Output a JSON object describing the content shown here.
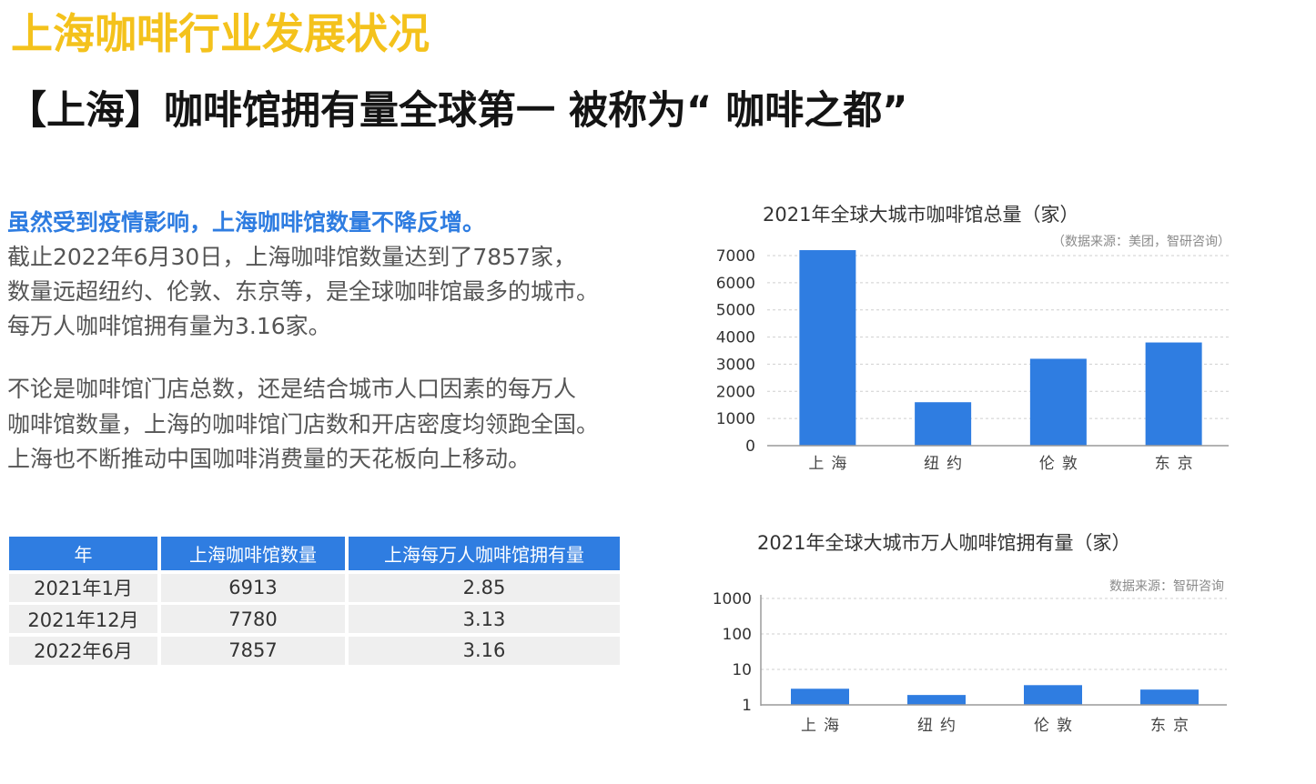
{
  "header": {
    "title": "上海咖啡行业发展状况",
    "subtitle": "【上海】咖啡馆拥有量全球第一 被称为“ 咖啡之都”"
  },
  "intro": {
    "highlight": "虽然受到疫情影响，上海咖啡馆数量不降反增。",
    "lines": [
      "截止2022年6月30日，上海咖啡馆数量达到了7857家，",
      "数量远超纽约、伦敦、东京等，是全球咖啡馆最多的城市。",
      "每万人咖啡馆拥有量为3.16家。"
    ]
  },
  "detail": {
    "lines": [
      "不论是咖啡馆门店总数，还是结合城市人口因素的每万人",
      "咖啡馆数量，上海的咖啡馆门店数和开店密度均领跑全国。",
      "上海也不断推动中国咖啡消费量的天花板向上移动。"
    ]
  },
  "table": {
    "headers": [
      "年",
      "上海咖啡馆数量",
      "上海每万人咖啡馆拥有量"
    ],
    "rows": [
      [
        "2021年1月",
        "6913",
        "2.85"
      ],
      [
        "2021年12月",
        "7780",
        "3.13"
      ],
      [
        "2022年6月",
        "7857",
        "3.16"
      ]
    ]
  },
  "colors": {
    "title": "#F4C21C",
    "highlight": "#2F7DE1",
    "table_header": "#2F7DE1",
    "bar": "#2F7DE1"
  },
  "chart_data": [
    {
      "type": "bar",
      "title": "2021年全球大城市咖啡馆总量（家）",
      "source": "（数据来源：美团，智研咨询）",
      "categories": [
        "上海",
        "纽约",
        "伦敦",
        "东京"
      ],
      "values": [
        7200,
        1600,
        3200,
        3800
      ],
      "yscale": "linear",
      "ylim": [
        0,
        7000
      ],
      "yticks": [
        0,
        1000,
        2000,
        3000,
        4000,
        5000,
        6000,
        7000
      ],
      "grid": true,
      "legend": "none"
    },
    {
      "type": "bar",
      "title": "2021年全球大城市万人咖啡馆拥有量（家）",
      "source": "数据来源：智研咨询",
      "categories": [
        "上海",
        "纽约",
        "伦敦",
        "东京"
      ],
      "values": [
        2.85,
        1.9,
        3.6,
        2.7
      ],
      "yscale": "log",
      "ylim": [
        1,
        1000
      ],
      "yticks": [
        1,
        10,
        100,
        1000
      ],
      "grid": true,
      "legend": "none"
    }
  ]
}
